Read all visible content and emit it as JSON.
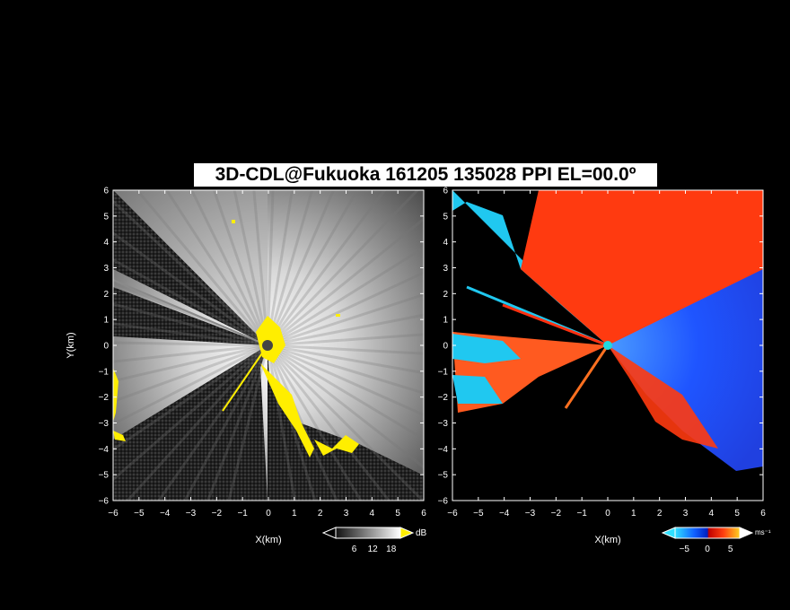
{
  "title": "3D-CDL@Fukuoka 161205 135028 PPI EL=00.0º",
  "chart_data": [
    {
      "type": "heatmap",
      "panel": "left",
      "quantity_unit": "dB",
      "xlabel": "X(km)",
      "ylabel": "Y(km)",
      "xlim": [
        -6,
        6
      ],
      "ylim": [
        -6,
        6
      ],
      "xticks": [
        "−6",
        "−5",
        "−4",
        "−3",
        "−2",
        "−1",
        "0",
        "1",
        "2",
        "3",
        "4",
        "5",
        "6"
      ],
      "yticks": [
        "−6",
        "−5",
        "−4",
        "−3",
        "−2",
        "−1",
        "0",
        "1",
        "2",
        "3",
        "4",
        "5",
        "6"
      ],
      "colorbar": {
        "ticks": [
          "6",
          "12",
          "18"
        ],
        "label": "dB",
        "range": [
          0,
          21
        ]
      },
      "colors": {
        "high": "#ffffff",
        "low": "#1a1a1a",
        "flag": "#ffee00"
      }
    },
    {
      "type": "heatmap",
      "panel": "right",
      "quantity_unit": "ms⁻¹",
      "xlabel": "X(km)",
      "xlim": [
        -6,
        6
      ],
      "ylim": [
        -6,
        6
      ],
      "xticks": [
        "−6",
        "−5",
        "−4",
        "−3",
        "−2",
        "−1",
        "0",
        "1",
        "2",
        "3",
        "4",
        "5",
        "6"
      ],
      "yticks": [
        "−6",
        "−5",
        "−4",
        "−3",
        "−2",
        "−1",
        "0",
        "1",
        "2",
        "3",
        "4",
        "5",
        "6"
      ],
      "colorbar": {
        "ticks": [
          "−5",
          "0",
          "5"
        ],
        "label": "ms⁻¹",
        "range": [
          -7,
          7
        ]
      },
      "colors": {
        "toward": "#1e5cff",
        "away": "#ff3a10",
        "far_toward": "#20d8ff",
        "far_away": "#ffb020"
      }
    }
  ]
}
